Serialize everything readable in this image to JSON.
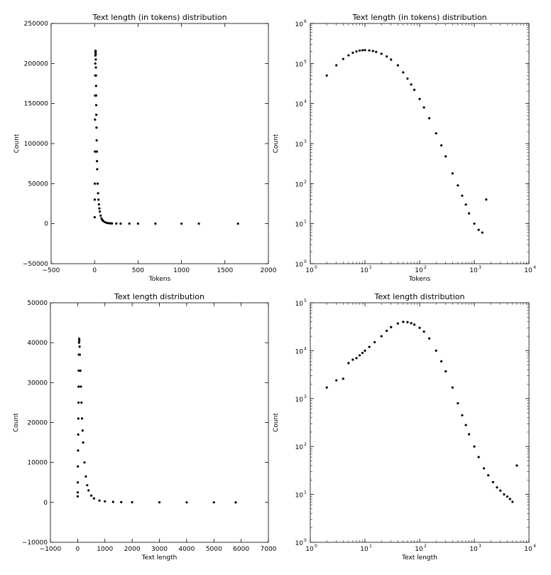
{
  "chart_data": [
    {
      "type": "scatter",
      "title": "Text length (in tokens) distribution",
      "xlabel": "Tokens",
      "ylabel": "Count",
      "xscale": "linear",
      "yscale": "linear",
      "xlim": [
        -500,
        2000
      ],
      "ylim": [
        -50000,
        250000
      ],
      "xticks": [
        -500,
        0,
        500,
        1000,
        1500,
        2000
      ],
      "yticks": [
        -50000,
        0,
        50000,
        100000,
        150000,
        200000,
        250000
      ],
      "xtick_labels": [
        "−500",
        "0",
        "500",
        "1000",
        "1500",
        "2000"
      ],
      "ytick_labels": [
        "−50000",
        "0",
        "50000",
        "100000",
        "150000",
        "200000",
        "250000"
      ],
      "grid": false,
      "series": [
        {
          "points": [
            [
              1,
              8000
            ],
            [
              2,
              30000
            ],
            [
              3,
              50000
            ],
            [
              4,
              90000
            ],
            [
              5,
              130000
            ],
            [
              6,
              160000
            ],
            [
              7,
              185000
            ],
            [
              8,
              200000
            ],
            [
              9,
              210000
            ],
            [
              10,
              214000
            ],
            [
              11,
              216000
            ],
            [
              12,
              215000
            ],
            [
              13,
              212000
            ],
            [
              14,
              205000
            ],
            [
              15,
              195000
            ],
            [
              16,
              185000
            ],
            [
              17,
              172000
            ],
            [
              18,
              160000
            ],
            [
              19,
              148000
            ],
            [
              20,
              136000
            ],
            [
              22,
              120000
            ],
            [
              24,
              104000
            ],
            [
              26,
              90000
            ],
            [
              28,
              78000
            ],
            [
              30,
              68000
            ],
            [
              35,
              50000
            ],
            [
              40,
              38000
            ],
            [
              45,
              30000
            ],
            [
              50,
              24000
            ],
            [
              55,
              19000
            ],
            [
              60,
              15000
            ],
            [
              70,
              10000
            ],
            [
              80,
              6500
            ],
            [
              90,
              4500
            ],
            [
              100,
              3200
            ],
            [
              120,
              1800
            ],
            [
              140,
              1000
            ],
            [
              160,
              600
            ],
            [
              180,
              400
            ],
            [
              200,
              260
            ],
            [
              250,
              120
            ],
            [
              300,
              60
            ],
            [
              400,
              20
            ],
            [
              500,
              10
            ],
            [
              700,
              5
            ],
            [
              1000,
              3
            ],
            [
              1200,
              2
            ],
            [
              1650,
              1
            ]
          ]
        }
      ]
    },
    {
      "type": "scatter",
      "title": "Text length (in tokens) distribution",
      "xlabel": "Tokens",
      "ylabel": "Count",
      "xscale": "log",
      "yscale": "log",
      "xlim": [
        1,
        10000
      ],
      "ylim": [
        1,
        1000000
      ],
      "xticks": [
        1,
        10,
        100,
        1000,
        10000
      ],
      "yticks": [
        1,
        10,
        100,
        1000,
        10000,
        100000,
        1000000
      ],
      "xtick_exponents": [
        "0",
        "1",
        "2",
        "3",
        "4"
      ],
      "ytick_exponents": [
        "0",
        "1",
        "2",
        "3",
        "4",
        "5",
        "6"
      ],
      "tick_base": "10",
      "grid": false,
      "series": [
        {
          "points": [
            [
              2,
              50000
            ],
            [
              3,
              90000
            ],
            [
              4,
              130000
            ],
            [
              5,
              160000
            ],
            [
              6,
              185000
            ],
            [
              7,
              200000
            ],
            [
              8,
              210000
            ],
            [
              9,
              214000
            ],
            [
              10,
              216000
            ],
            [
              12,
              212000
            ],
            [
              14,
              205000
            ],
            [
              16,
              195000
            ],
            [
              20,
              175000
            ],
            [
              25,
              150000
            ],
            [
              30,
              125000
            ],
            [
              40,
              90000
            ],
            [
              50,
              60000
            ],
            [
              60,
              42000
            ],
            [
              70,
              30000
            ],
            [
              80,
              22000
            ],
            [
              100,
              13000
            ],
            [
              120,
              8000
            ],
            [
              150,
              4300
            ],
            [
              200,
              1800
            ],
            [
              250,
              900
            ],
            [
              300,
              480
            ],
            [
              400,
              180
            ],
            [
              500,
              90
            ],
            [
              600,
              50
            ],
            [
              700,
              30
            ],
            [
              800,
              18
            ],
            [
              1000,
              10
            ],
            [
              1200,
              7
            ],
            [
              1400,
              6
            ],
            [
              1650,
              40
            ]
          ]
        }
      ]
    },
    {
      "type": "scatter",
      "title": "Text length distribution",
      "xlabel": "Text length",
      "ylabel": "Count",
      "xscale": "linear",
      "yscale": "linear",
      "xlim": [
        -1000,
        7000
      ],
      "ylim": [
        -10000,
        50000
      ],
      "xticks": [
        -1000,
        0,
        1000,
        2000,
        3000,
        4000,
        5000,
        6000,
        7000
      ],
      "yticks": [
        -10000,
        0,
        10000,
        20000,
        30000,
        40000,
        50000
      ],
      "xtick_labels": [
        "−1000",
        "0",
        "1000",
        "2000",
        "3000",
        "4000",
        "5000",
        "6000",
        "7000"
      ],
      "ytick_labels": [
        "−10000",
        "0",
        "10000",
        "20000",
        "30000",
        "40000",
        "50000"
      ],
      "grid": false,
      "series": [
        {
          "points": [
            [
              2,
              1500
            ],
            [
              4,
              2500
            ],
            [
              6,
              5000
            ],
            [
              10,
              9000
            ],
            [
              15,
              13000
            ],
            [
              20,
              17000
            ],
            [
              25,
              21000
            ],
            [
              30,
              25000
            ],
            [
              35,
              29000
            ],
            [
              40,
              33000
            ],
            [
              45,
              37000
            ],
            [
              50,
              40000
            ],
            [
              55,
              41000
            ],
            [
              60,
              40500
            ],
            [
              70,
              39000
            ],
            [
              80,
              37000
            ],
            [
              100,
              33000
            ],
            [
              120,
              29000
            ],
            [
              140,
              25000
            ],
            [
              160,
              21000
            ],
            [
              180,
              18000
            ],
            [
              200,
              15000
            ],
            [
              250,
              10000
            ],
            [
              300,
              6500
            ],
            [
              350,
              4300
            ],
            [
              400,
              3000
            ],
            [
              500,
              1700
            ],
            [
              600,
              1000
            ],
            [
              800,
              450
            ],
            [
              1000,
              250
            ],
            [
              1300,
              120
            ],
            [
              1600,
              70
            ],
            [
              2000,
              40
            ],
            [
              3000,
              15
            ],
            [
              4000,
              8
            ],
            [
              5000,
              5
            ],
            [
              5800,
              2
            ]
          ]
        }
      ]
    },
    {
      "type": "scatter",
      "title": "Text length distribution",
      "xlabel": "Text length",
      "ylabel": "Count",
      "xscale": "log",
      "yscale": "log",
      "xlim": [
        1,
        10000
      ],
      "ylim": [
        1,
        100000
      ],
      "xticks": [
        1,
        10,
        100,
        1000,
        10000
      ],
      "yticks": [
        1,
        10,
        100,
        1000,
        10000,
        100000
      ],
      "xtick_exponents": [
        "0",
        "1",
        "2",
        "3",
        "4"
      ],
      "ytick_exponents": [
        "0",
        "1",
        "2",
        "3",
        "4",
        "5"
      ],
      "tick_base": "10",
      "grid": false,
      "series": [
        {
          "points": [
            [
              2,
              1700
            ],
            [
              3,
              2400
            ],
            [
              4,
              2600
            ],
            [
              5,
              5500
            ],
            [
              6,
              6500
            ],
            [
              7,
              7000
            ],
            [
              8,
              8000
            ],
            [
              9,
              9000
            ],
            [
              10,
              10000
            ],
            [
              12,
              12000
            ],
            [
              15,
              15000
            ],
            [
              20,
              20000
            ],
            [
              25,
              26000
            ],
            [
              30,
              31000
            ],
            [
              40,
              37000
            ],
            [
              50,
              40000
            ],
            [
              60,
              39500
            ],
            [
              70,
              37500
            ],
            [
              80,
              35000
            ],
            [
              100,
              30000
            ],
            [
              120,
              25000
            ],
            [
              150,
              18000
            ],
            [
              200,
              10000
            ],
            [
              250,
              6000
            ],
            [
              300,
              3700
            ],
            [
              400,
              1700
            ],
            [
              500,
              800
            ],
            [
              600,
              450
            ],
            [
              700,
              280
            ],
            [
              800,
              180
            ],
            [
              1000,
              100
            ],
            [
              1200,
              60
            ],
            [
              1500,
              35
            ],
            [
              1800,
              25
            ],
            [
              2200,
              18
            ],
            [
              2600,
              14
            ],
            [
              3000,
              12
            ],
            [
              3500,
              10
            ],
            [
              4000,
              9
            ],
            [
              4500,
              8
            ],
            [
              5000,
              7
            ],
            [
              6000,
              40
            ]
          ]
        }
      ]
    }
  ]
}
